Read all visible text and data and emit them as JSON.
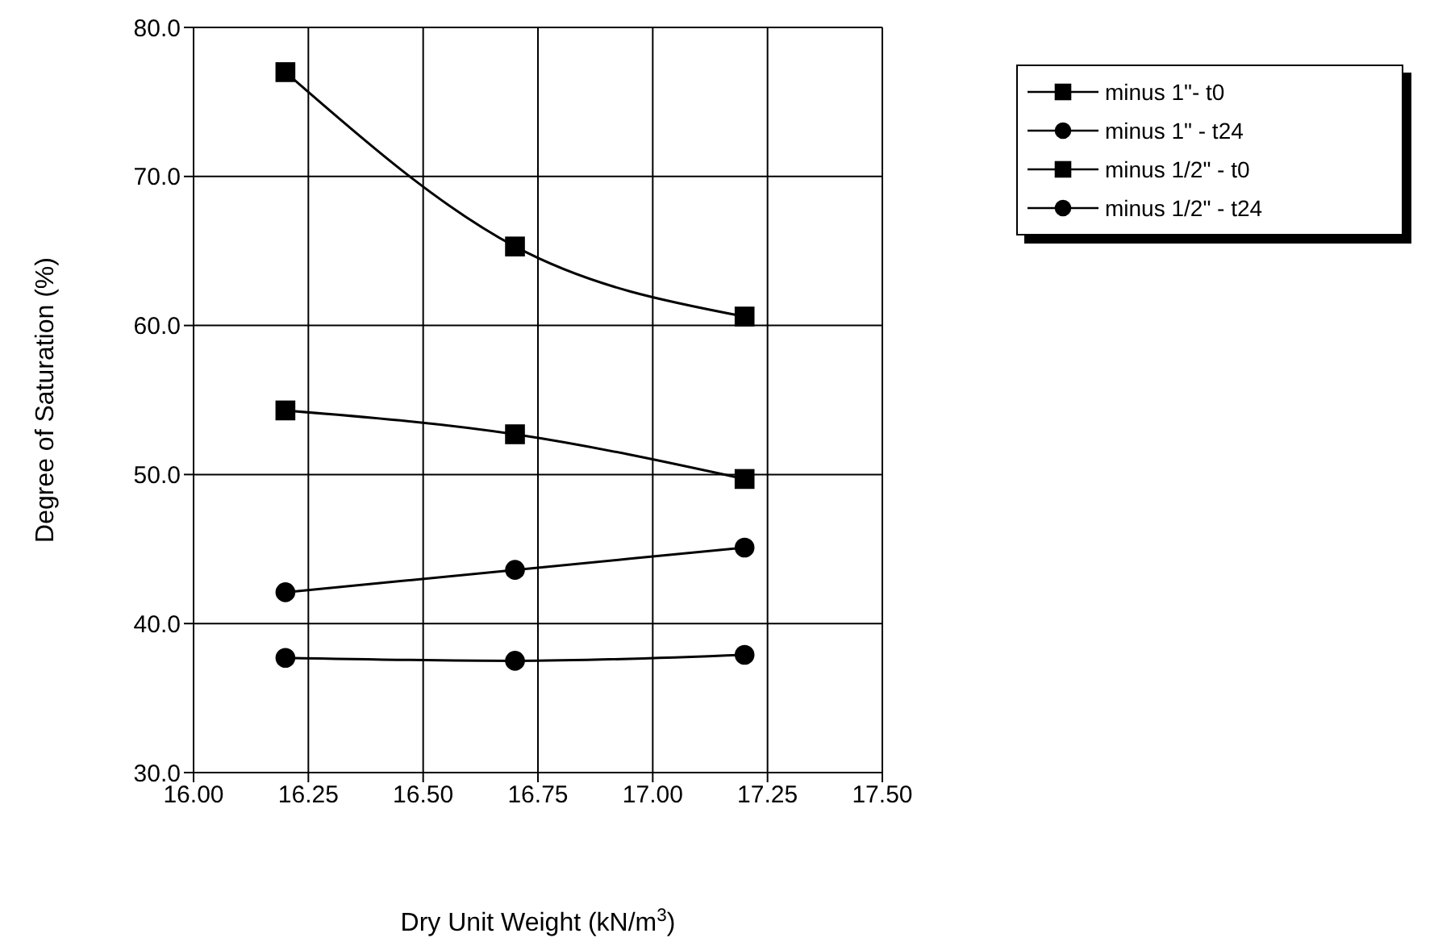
{
  "chart_data": {
    "type": "line",
    "xlabel": "Dry Unit Weight (kN/m$^{3}$)",
    "ylabel": "Degree of Saturation (%)",
    "x": [
      16.2,
      16.7,
      17.2
    ],
    "series": [
      {
        "name": "minus 1\"- t0",
        "color": "#000000",
        "marker": "square",
        "values": [
          54.3,
          52.7,
          49.7
        ]
      },
      {
        "name": "minus 1\" - t24",
        "color": "#000000",
        "marker": "circle",
        "values": [
          37.7,
          37.5,
          37.9
        ]
      },
      {
        "name": "minus 1/2\" - t0",
        "color": "#000000",
        "marker": "square",
        "values": [
          77.0,
          65.3,
          60.6
        ]
      },
      {
        "name": "minus 1/2\" - t24",
        "color": "#000000",
        "marker": "circle",
        "values": [
          42.1,
          43.6,
          45.1
        ]
      }
    ],
    "xlim": [
      16.0,
      17.5
    ],
    "xticks": [
      {
        "value": 16,
        "label": "16.00"
      },
      {
        "value": 16.25,
        "label": "16.25"
      },
      {
        "value": 16.5,
        "label": "16.50"
      },
      {
        "value": 16.75,
        "label": "16.75"
      },
      {
        "value": 17,
        "label": "17.00"
      },
      {
        "value": 17.25,
        "label": "17.25"
      },
      {
        "value": 17.5,
        "label": "17.50"
      }
    ],
    "ylim": [
      30,
      80
    ],
    "yticks": [
      {
        "value": 30,
        "label": "30.0"
      },
      {
        "value": 40,
        "label": "40.0"
      },
      {
        "value": 50,
        "label": "50.0"
      },
      {
        "value": 60,
        "label": "60.0"
      },
      {
        "value": 70,
        "label": "70.0"
      },
      {
        "value": 80,
        "label": "80.0"
      }
    ],
    "grid": true,
    "legend": "top right",
    "line_style": "solid"
  }
}
